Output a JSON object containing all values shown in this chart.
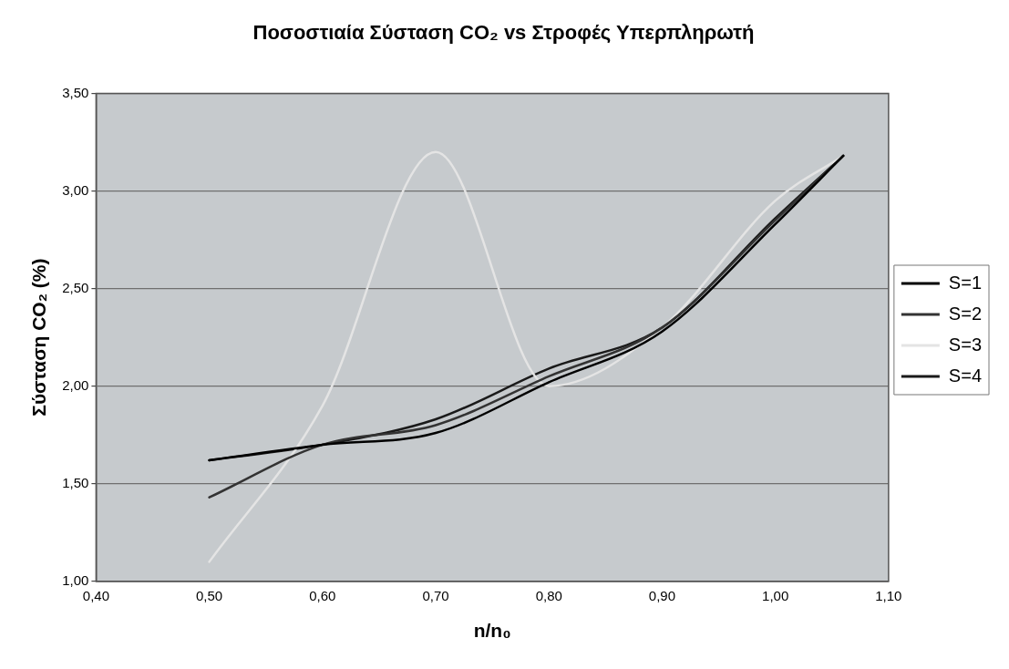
{
  "chart_data": {
    "type": "line",
    "title": "Ποσοστιαία Σύσταση CO₂ vs Στροφές Υπερπληρωτή",
    "xlabel": "n/n₀",
    "ylabel": "Σύσταση CO₂ (%)",
    "x": [
      0.5,
      0.6,
      0.7,
      0.8,
      0.9,
      1.0,
      1.06
    ],
    "series": [
      {
        "name": "S=1",
        "color": "#000000",
        "values": [
          1.62,
          1.7,
          1.76,
          2.02,
          2.28,
          2.83,
          3.18
        ]
      },
      {
        "name": "S=2",
        "color": "#333333",
        "values": [
          1.43,
          1.7,
          1.8,
          2.05,
          2.3,
          2.85,
          3.18
        ]
      },
      {
        "name": "S=3",
        "color": "#e4e4e4",
        "values": [
          1.1,
          1.9,
          3.2,
          2.0,
          2.3,
          2.95,
          3.18
        ]
      },
      {
        "name": "S=4",
        "color": "#1a1a1a",
        "values": [
          1.62,
          1.7,
          1.83,
          2.09,
          2.3,
          2.86,
          3.18
        ]
      }
    ],
    "xlim": [
      0.4,
      1.1
    ],
    "ylim": [
      1.0,
      3.5
    ],
    "xticks": [
      {
        "value": 0.4,
        "label": "0,40"
      },
      {
        "value": 0.5,
        "label": "0,50"
      },
      {
        "value": 0.6,
        "label": "0,60"
      },
      {
        "value": 0.7,
        "label": "0,70"
      },
      {
        "value": 0.8,
        "label": "0,80"
      },
      {
        "value": 0.9,
        "label": "0,90"
      },
      {
        "value": 1.0,
        "label": "1,00"
      },
      {
        "value": 1.1,
        "label": "1,10"
      }
    ],
    "yticks": [
      {
        "value": 1.0,
        "label": "1,00"
      },
      {
        "value": 1.5,
        "label": "1,50"
      },
      {
        "value": 2.0,
        "label": "2,00"
      },
      {
        "value": 2.5,
        "label": "2,50"
      },
      {
        "value": 3.0,
        "label": "3,00"
      },
      {
        "value": 3.5,
        "label": "3,50"
      }
    ],
    "grid": "y",
    "legend": "right",
    "marker": "none",
    "line_style": "solid"
  }
}
